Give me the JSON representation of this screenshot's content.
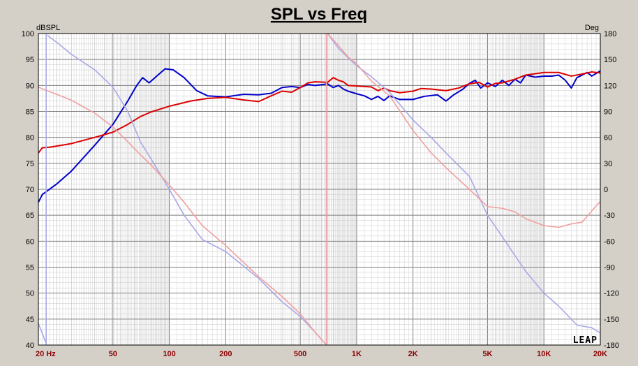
{
  "chart_data": {
    "type": "line",
    "title": "SPL vs Freq",
    "ylabel": "dBSPL",
    "y2label": "Deg",
    "xscale": "log",
    "xlim": [
      20,
      20000
    ],
    "ylim": [
      40,
      100
    ],
    "y2lim": [
      -180,
      180
    ],
    "grid": true,
    "x_ticks": [
      {
        "value": 20,
        "label": "20  Hz"
      },
      {
        "value": 50,
        "label": "50"
      },
      {
        "value": 100,
        "label": "100"
      },
      {
        "value": 200,
        "label": "200"
      },
      {
        "value": 500,
        "label": "500"
      },
      {
        "value": 1000,
        "label": "1K"
      },
      {
        "value": 2000,
        "label": "2K"
      },
      {
        "value": 5000,
        "label": "5K"
      },
      {
        "value": 10000,
        "label": "10K"
      },
      {
        "value": 20000,
        "label": "20K"
      }
    ],
    "y_ticks": [
      100,
      95,
      90,
      85,
      80,
      75,
      70,
      65,
      60,
      55,
      50,
      45,
      40
    ],
    "y2_ticks": [
      180,
      150,
      120,
      90,
      60,
      30,
      0,
      -30,
      -60,
      -90,
      -120,
      -150,
      -180
    ],
    "series": [
      {
        "color": "#0000cc",
        "axis": "left",
        "width": 2,
        "points": [
          [
            20,
            67.5
          ],
          [
            21,
            69
          ],
          [
            25,
            71
          ],
          [
            30,
            73.5
          ],
          [
            40,
            78.5
          ],
          [
            50,
            82.5
          ],
          [
            60,
            87
          ],
          [
            67,
            90
          ],
          [
            72,
            91.5
          ],
          [
            78,
            90.5
          ],
          [
            85,
            91.7
          ],
          [
            95,
            93.2
          ],
          [
            105,
            93
          ],
          [
            120,
            91.5
          ],
          [
            140,
            89
          ],
          [
            160,
            88
          ],
          [
            200,
            87.8
          ],
          [
            250,
            88.3
          ],
          [
            300,
            88.2
          ],
          [
            350,
            88.5
          ],
          [
            400,
            89.6
          ],
          [
            450,
            89.8
          ],
          [
            500,
            89.6
          ],
          [
            550,
            90.2
          ],
          [
            600,
            90
          ],
          [
            700,
            90.3
          ],
          [
            750,
            89.6
          ],
          [
            800,
            90
          ],
          [
            850,
            89.3
          ],
          [
            900,
            88.9
          ],
          [
            1000,
            88.4
          ],
          [
            1100,
            88
          ],
          [
            1200,
            87.3
          ],
          [
            1300,
            87.9
          ],
          [
            1400,
            87.1
          ],
          [
            1500,
            88
          ],
          [
            1700,
            87.3
          ],
          [
            2000,
            87.3
          ],
          [
            2300,
            87.9
          ],
          [
            2700,
            88.2
          ],
          [
            3000,
            87
          ],
          [
            3300,
            88.2
          ],
          [
            3700,
            89.3
          ],
          [
            4000,
            90.4
          ],
          [
            4300,
            91
          ],
          [
            4600,
            89.5
          ],
          [
            5000,
            90.5
          ],
          [
            5500,
            89.8
          ],
          [
            6000,
            91
          ],
          [
            6500,
            90
          ],
          [
            7000,
            91.2
          ],
          [
            7500,
            90.5
          ],
          [
            8000,
            92
          ],
          [
            9000,
            91.6
          ],
          [
            10000,
            91.8
          ],
          [
            11000,
            91.8
          ],
          [
            12000,
            92
          ],
          [
            13000,
            91
          ],
          [
            14000,
            89.5
          ],
          [
            15000,
            91.5
          ],
          [
            16000,
            92
          ],
          [
            17000,
            92.5
          ],
          [
            18000,
            91.8
          ],
          [
            20000,
            92.8
          ]
        ]
      },
      {
        "color": "#dd0000",
        "axis": "left",
        "width": 2,
        "points": [
          [
            20,
            77
          ],
          [
            21,
            78
          ],
          [
            23,
            78.1
          ],
          [
            30,
            78.8
          ],
          [
            40,
            80
          ],
          [
            50,
            81
          ],
          [
            60,
            82.5
          ],
          [
            70,
            84
          ],
          [
            80,
            84.9
          ],
          [
            100,
            86
          ],
          [
            130,
            87
          ],
          [
            160,
            87.5
          ],
          [
            200,
            87.7
          ],
          [
            250,
            87.2
          ],
          [
            300,
            86.9
          ],
          [
            350,
            88
          ],
          [
            400,
            88.9
          ],
          [
            450,
            88.7
          ],
          [
            500,
            89.6
          ],
          [
            550,
            90.5
          ],
          [
            600,
            90.7
          ],
          [
            700,
            90.6
          ],
          [
            750,
            91.5
          ],
          [
            800,
            91
          ],
          [
            850,
            90.7
          ],
          [
            900,
            90
          ],
          [
            1000,
            89.9
          ],
          [
            1200,
            89.7
          ],
          [
            1300,
            89
          ],
          [
            1400,
            89.5
          ],
          [
            1500,
            89
          ],
          [
            1700,
            88.6
          ],
          [
            2000,
            88.9
          ],
          [
            2200,
            89.4
          ],
          [
            2500,
            89.3
          ],
          [
            3000,
            89
          ],
          [
            3500,
            89.5
          ],
          [
            4000,
            90.3
          ],
          [
            4500,
            90.6
          ],
          [
            5000,
            89.7
          ],
          [
            5500,
            90.4
          ],
          [
            6000,
            90.5
          ],
          [
            7000,
            91.2
          ],
          [
            8000,
            92
          ],
          [
            10000,
            92.5
          ],
          [
            12000,
            92.5
          ],
          [
            14000,
            91.8
          ],
          [
            16000,
            92.2
          ],
          [
            18000,
            92.6
          ],
          [
            20000,
            92.4
          ]
        ]
      },
      {
        "color": "#a8a8e8",
        "axis": "right",
        "width": 1.6,
        "points": [
          [
            20,
            -155
          ],
          [
            22,
            -178
          ],
          [
            22.3,
            178
          ],
          [
            25,
            170
          ],
          [
            30,
            156
          ],
          [
            40,
            138
          ],
          [
            50,
            118
          ],
          [
            60,
            90
          ],
          [
            70,
            55
          ],
          [
            80,
            35
          ],
          [
            100,
            0
          ],
          [
            120,
            -30
          ],
          [
            150,
            -58
          ],
          [
            200,
            -72
          ],
          [
            300,
            -103
          ],
          [
            400,
            -130
          ],
          [
            500,
            -147
          ],
          [
            600,
            -165
          ],
          [
            690,
            -180
          ],
          [
            700,
            180
          ],
          [
            800,
            163
          ],
          [
            900,
            152
          ],
          [
            1000,
            143
          ],
          [
            1200,
            130
          ],
          [
            1500,
            112
          ],
          [
            2000,
            80
          ],
          [
            2500,
            60
          ],
          [
            3000,
            42
          ],
          [
            4000,
            15
          ],
          [
            5000,
            -30
          ],
          [
            6000,
            -55
          ],
          [
            8000,
            -95
          ],
          [
            10000,
            -120
          ],
          [
            12000,
            -135
          ],
          [
            15000,
            -157
          ],
          [
            18000,
            -160
          ],
          [
            20000,
            -166
          ]
        ]
      },
      {
        "color": "#f0a0a0",
        "axis": "right",
        "width": 1.6,
        "points": [
          [
            20,
            118
          ],
          [
            30,
            103
          ],
          [
            40,
            88
          ],
          [
            50,
            72
          ],
          [
            60,
            55
          ],
          [
            70,
            40
          ],
          [
            80,
            28
          ],
          [
            100,
            5
          ],
          [
            120,
            -15
          ],
          [
            150,
            -42
          ],
          [
            200,
            -65
          ],
          [
            300,
            -101
          ],
          [
            400,
            -124
          ],
          [
            500,
            -144
          ],
          [
            600,
            -165
          ],
          [
            690,
            -180
          ],
          [
            700,
            180
          ],
          [
            800,
            166
          ],
          [
            900,
            153
          ],
          [
            1000,
            145
          ],
          [
            1200,
            125
          ],
          [
            1500,
            108
          ],
          [
            2000,
            68
          ],
          [
            2500,
            42
          ],
          [
            3000,
            25
          ],
          [
            4000,
            0
          ],
          [
            5000,
            -20
          ],
          [
            6000,
            -22
          ],
          [
            7000,
            -26
          ],
          [
            8000,
            -34
          ],
          [
            10000,
            -42
          ],
          [
            12000,
            -44
          ],
          [
            14000,
            -40
          ],
          [
            16000,
            -38
          ],
          [
            18000,
            -25
          ],
          [
            20000,
            -14
          ]
        ]
      }
    ],
    "logo": "LEAP"
  }
}
